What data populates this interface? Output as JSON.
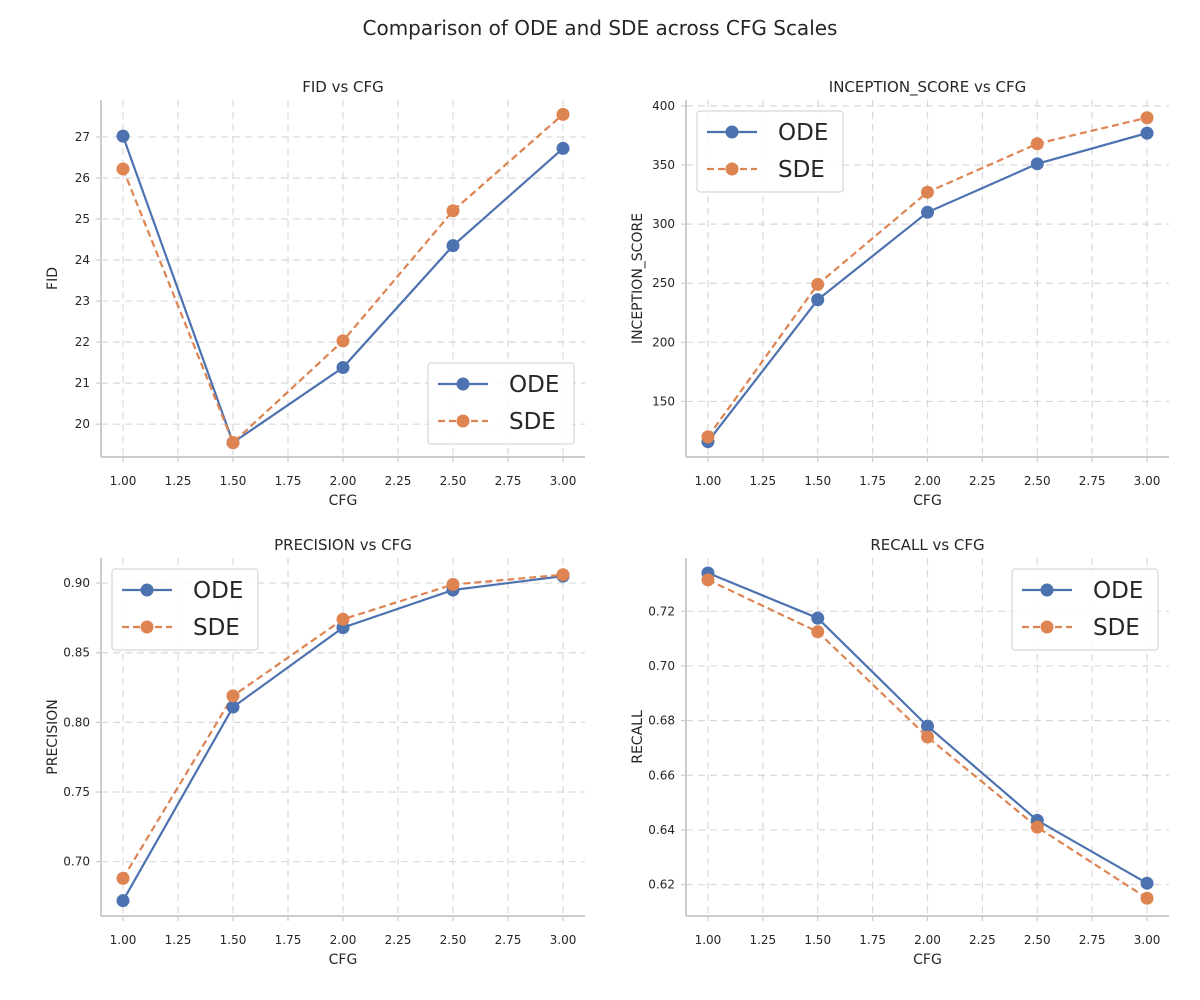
{
  "figure": {
    "suptitle": "Comparison of ODE and SDE across CFG Scales",
    "colors": {
      "ODE": "#4c72b0",
      "SDE": "#dd8452"
    }
  },
  "chart_data": [
    {
      "type": "line",
      "title": "FID vs CFG",
      "xlabel": "CFG",
      "ylabel": "FID",
      "x": [
        1.0,
        1.5,
        2.0,
        2.5,
        3.0
      ],
      "xlim": [
        0.9,
        3.1
      ],
      "ylim": [
        19.2,
        27.9
      ],
      "xticks": [
        "1.00",
        "1.25",
        "1.50",
        "1.75",
        "2.00",
        "2.25",
        "2.50",
        "2.75",
        "3.00"
      ],
      "yticks": [
        "20",
        "21",
        "22",
        "23",
        "24",
        "25",
        "26",
        "27"
      ],
      "legend": "lower-right",
      "grid": true,
      "series": [
        {
          "name": "ODE",
          "style": "solid",
          "values": [
            27.02,
            19.55,
            21.38,
            24.35,
            26.72
          ]
        },
        {
          "name": "SDE",
          "style": "dashed",
          "values": [
            26.22,
            19.55,
            22.03,
            25.2,
            27.55
          ]
        }
      ]
    },
    {
      "type": "line",
      "title": "INCEPTION_SCORE vs CFG",
      "xlabel": "CFG",
      "ylabel": "INCEPTION_SCORE",
      "x": [
        1.0,
        1.5,
        2.0,
        2.5,
        3.0
      ],
      "xlim": [
        0.9,
        3.1
      ],
      "ylim": [
        103,
        405
      ],
      "xticks": [
        "1.00",
        "1.25",
        "1.50",
        "1.75",
        "2.00",
        "2.25",
        "2.50",
        "2.75",
        "3.00"
      ],
      "yticks": [
        "150",
        "200",
        "250",
        "300",
        "350",
        "400"
      ],
      "legend": "top-left",
      "grid": true,
      "series": [
        {
          "name": "ODE",
          "style": "solid",
          "values": [
            116,
            236,
            310,
            351,
            377
          ]
        },
        {
          "name": "SDE",
          "style": "dashed",
          "values": [
            120,
            249,
            327,
            368,
            390
          ]
        }
      ]
    },
    {
      "type": "line",
      "title": "PRECISION vs CFG",
      "xlabel": "CFG",
      "ylabel": "PRECISION",
      "x": [
        1.0,
        1.5,
        2.0,
        2.5,
        3.0
      ],
      "xlim": [
        0.9,
        3.1
      ],
      "ylim": [
        0.661,
        0.918
      ],
      "xticks": [
        "1.00",
        "1.25",
        "1.50",
        "1.75",
        "2.00",
        "2.25",
        "2.50",
        "2.75",
        "3.00"
      ],
      "yticks": [
        "0.70",
        "0.75",
        "0.80",
        "0.85",
        "0.90"
      ],
      "legend": "top-left",
      "grid": true,
      "series": [
        {
          "name": "ODE",
          "style": "solid",
          "values": [
            0.672,
            0.811,
            0.868,
            0.895,
            0.905
          ]
        },
        {
          "name": "SDE",
          "style": "dashed",
          "values": [
            0.688,
            0.819,
            0.874,
            0.899,
            0.906
          ]
        }
      ]
    },
    {
      "type": "line",
      "title": "RECALL vs CFG",
      "xlabel": "CFG",
      "ylabel": "RECALL",
      "x": [
        1.0,
        1.5,
        2.0,
        2.5,
        3.0
      ],
      "xlim": [
        0.9,
        3.1
      ],
      "ylim": [
        0.6085,
        0.7395
      ],
      "xticks": [
        "1.00",
        "1.25",
        "1.50",
        "1.75",
        "2.00",
        "2.25",
        "2.50",
        "2.75",
        "3.00"
      ],
      "yticks": [
        "0.62",
        "0.64",
        "0.66",
        "0.68",
        "0.70",
        "0.72"
      ],
      "legend": "top-right",
      "grid": true,
      "series": [
        {
          "name": "ODE",
          "style": "solid",
          "values": [
            0.734,
            0.7175,
            0.678,
            0.6435,
            0.6205
          ]
        },
        {
          "name": "SDE",
          "style": "dashed",
          "values": [
            0.7315,
            0.7125,
            0.674,
            0.641,
            0.615
          ]
        }
      ]
    }
  ]
}
